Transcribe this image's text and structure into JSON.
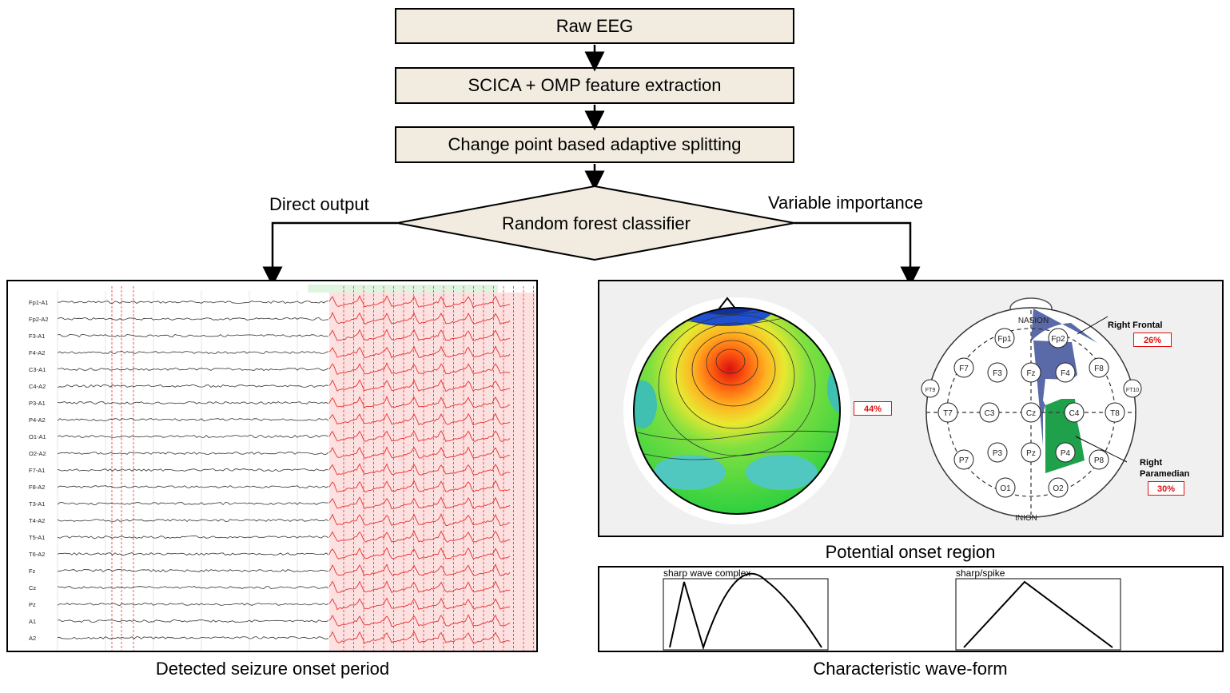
{
  "flow": {
    "step1": "Raw EEG",
    "step2": "SCICA + OMP feature extraction",
    "step3": "Change point based adaptive splitting",
    "classifier": "Random forest classifier",
    "left_branch": "Direct output",
    "right_branch": "Variable importance"
  },
  "eeg_panel": {
    "caption": "Detected seizure onset period",
    "channels": [
      "Fp1-A1",
      "Fp2-A2",
      "F3-A1",
      "F4-A2",
      "C3-A1",
      "C4-A2",
      "P3-A1",
      "P4-A2",
      "O1-A1",
      "O2-A2",
      "F7-A1",
      "F8-A2",
      "T3-A1",
      "T4-A2",
      "T5-A1",
      "T6-A2",
      "Fz",
      "Cz",
      "Pz",
      "A1",
      "A2"
    ],
    "trace_color": "#333333",
    "seizure_color": "#e83030",
    "seizure_bg": "#fde0e0"
  },
  "onset_panel": {
    "caption": "Potential onset region",
    "topomap_pct": "44%",
    "nasion": "NASION",
    "inion": "INION",
    "electrodes": [
      "Fp1",
      "Fp2",
      "F7",
      "F3",
      "Fz",
      "F4",
      "F8",
      "FT9",
      "FT10",
      "T7",
      "C3",
      "Cz",
      "C4",
      "T8",
      "P7",
      "P3",
      "Pz",
      "P4",
      "P8",
      "O1",
      "O2"
    ],
    "frontal_label": "Right Frontal",
    "frontal_pct": "26%",
    "frontal_color": "#5a6aa8",
    "paramedian_label_1": "Right",
    "paramedian_label_2": "Paramedian",
    "paramedian_pct": "30%",
    "paramedian_color": "#1fa04a"
  },
  "wave_panel": {
    "caption": "Characteristic wave-form",
    "wave1_title": "sharp wave complex",
    "wave2_title": "sharp/spike"
  }
}
